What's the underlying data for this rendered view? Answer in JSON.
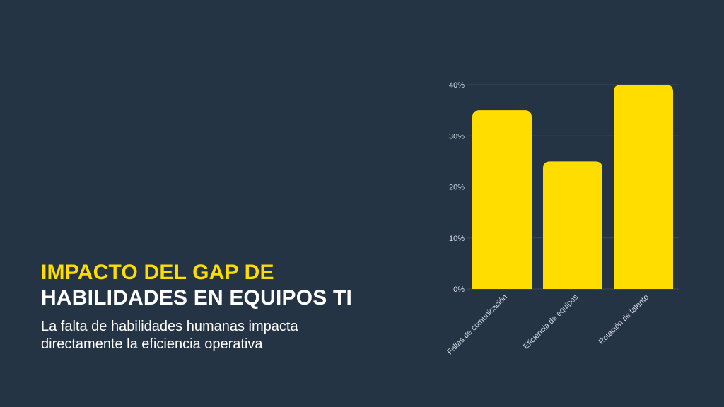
{
  "slide": {
    "title_line1": "IMPACTO DEL GAP DE",
    "title_line2": "HABILIDADES EN EQUIPOS TI",
    "subtitle_line1": "La falta de habilidades humanas impacta",
    "subtitle_line2": "directamente la eficiencia operativa"
  },
  "colors": {
    "background": "#253445",
    "accent": "#FFDD00",
    "text": "#FFFFFF",
    "gridline": "#3A4A5C",
    "tick_label": "#D5DCE4"
  },
  "chart_data": {
    "type": "bar",
    "categories": [
      "Fallas de comunicación",
      "Eficiencia de equipos",
      "Rotación de talento"
    ],
    "values": [
      35,
      25,
      40
    ],
    "ylim": [
      0,
      40
    ],
    "yticks": [
      0,
      10,
      20,
      30,
      40
    ],
    "ytick_labels": [
      "0%",
      "10%",
      "20%",
      "30%",
      "40%"
    ],
    "grid": true,
    "title": "",
    "xlabel": "",
    "ylabel": ""
  }
}
